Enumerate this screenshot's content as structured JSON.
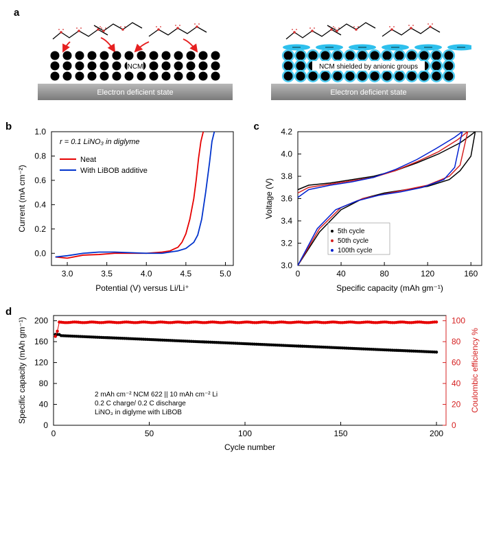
{
  "panel_a": {
    "label": "a",
    "left_label": "NCM",
    "right_label": "NCM shielded by anionic groups",
    "bar_text": "Electron deficient state",
    "grid_cols": 14,
    "grid_rows": 3,
    "dot_radius": 6.5,
    "dot_spacing": 18,
    "left_dot_color": "#000000",
    "right_dot_color": "#000000",
    "shield_fill": "#4ecaef",
    "shield_blob_color": "#2ec0ed",
    "molecule_o_color": "#d52e2e",
    "molecule_chain_color": "#000000",
    "arrow_color": "#e62020",
    "bar_gradient_from": "#b8b8b8",
    "bar_gradient_to": "#7a7a7a"
  },
  "panel_b": {
    "label": "b",
    "type": "line",
    "title_inset": "r = 0.1 LiNO₃ in diglyme",
    "xlabel": "Potential (V) versus Li/Li⁺",
    "ylabel": "Current (mA cm⁻²)",
    "xlim": [
      2.8,
      5.1
    ],
    "ylim": [
      -0.1,
      1.0
    ],
    "xticks": [
      3.0,
      3.5,
      4.0,
      4.5,
      5.0
    ],
    "yticks": [
      0.0,
      0.2,
      0.4,
      0.6,
      0.8,
      1.0
    ],
    "axis_color": "#000000",
    "tick_fontsize": 12,
    "label_fontsize": 12,
    "legend_fontsize": 11,
    "series": {
      "neat": {
        "label": "Neat",
        "color": "#e60000",
        "x": [
          2.85,
          3.0,
          3.2,
          3.4,
          3.6,
          3.8,
          4.0,
          4.2,
          4.3,
          4.4,
          4.45,
          4.5,
          4.55,
          4.6,
          4.63,
          4.66,
          4.69,
          4.72
        ],
        "y": [
          -0.03,
          -0.04,
          -0.015,
          -0.01,
          0.0,
          0.0,
          0.0,
          0.01,
          0.02,
          0.05,
          0.09,
          0.16,
          0.28,
          0.45,
          0.6,
          0.78,
          0.92,
          1.0
        ]
      },
      "additive": {
        "label": "With LiBOB additive",
        "color": "#0033cc",
        "x": [
          2.85,
          3.0,
          3.2,
          3.4,
          3.6,
          3.8,
          4.0,
          4.2,
          4.4,
          4.5,
          4.6,
          4.65,
          4.7,
          4.75,
          4.8,
          4.83,
          4.86
        ],
        "y": [
          -0.03,
          -0.02,
          0.0,
          0.01,
          0.01,
          0.005,
          0.0,
          0.0,
          0.02,
          0.04,
          0.09,
          0.15,
          0.28,
          0.5,
          0.75,
          0.92,
          1.0
        ]
      }
    }
  },
  "panel_c": {
    "label": "c",
    "type": "line",
    "xlabel": "Specific capacity (mAh gm⁻¹)",
    "ylabel": "Voltage (V)",
    "xlim": [
      0,
      170
    ],
    "ylim": [
      3.0,
      4.2
    ],
    "xticks": [
      0,
      40,
      80,
      120,
      160
    ],
    "yticks": [
      3.0,
      3.2,
      3.4,
      3.6,
      3.8,
      4.0,
      4.2
    ],
    "axis_color": "#000000",
    "tick_fontsize": 12,
    "label_fontsize": 12,
    "legend_fontsize": 10,
    "legend_items": [
      {
        "label": "5th cycle",
        "color": "#000000"
      },
      {
        "label": "50th cycle",
        "color": "#d52020"
      },
      {
        "label": "100th cycle",
        "color": "#0020d0"
      }
    ],
    "series": {
      "c5_charge": {
        "color": "#000000",
        "x": [
          0,
          10,
          30,
          50,
          70,
          90,
          110,
          130,
          150,
          160,
          164
        ],
        "y": [
          3.68,
          3.72,
          3.74,
          3.77,
          3.8,
          3.85,
          3.92,
          4.0,
          4.1,
          4.17,
          4.2
        ]
      },
      "c5_dis": {
        "color": "#000000",
        "x": [
          164,
          160,
          150,
          140,
          120,
          100,
          80,
          60,
          40,
          20,
          0
        ],
        "y": [
          4.2,
          3.98,
          3.85,
          3.77,
          3.71,
          3.68,
          3.65,
          3.6,
          3.5,
          3.3,
          3.0
        ]
      },
      "c50_charge": {
        "color": "#d52020",
        "x": [
          0,
          10,
          30,
          50,
          70,
          90,
          110,
          130,
          148,
          157
        ],
        "y": [
          3.65,
          3.7,
          3.73,
          3.76,
          3.79,
          3.85,
          3.93,
          4.02,
          4.13,
          4.2
        ]
      },
      "c50_dis": {
        "color": "#d52020",
        "x": [
          157,
          150,
          140,
          120,
          100,
          80,
          60,
          40,
          20,
          0
        ],
        "y": [
          4.2,
          3.9,
          3.8,
          3.72,
          3.68,
          3.64,
          3.6,
          3.52,
          3.33,
          3.0
        ]
      },
      "c100_charge": {
        "color": "#0020d0",
        "x": [
          0,
          10,
          30,
          50,
          70,
          90,
          110,
          128,
          145,
          152
        ],
        "y": [
          3.61,
          3.68,
          3.72,
          3.75,
          3.79,
          3.86,
          3.95,
          4.05,
          4.15,
          4.2
        ]
      },
      "c100_dis": {
        "color": "#0020d0",
        "x": [
          152,
          145,
          135,
          115,
          95,
          75,
          55,
          35,
          18,
          0
        ],
        "y": [
          4.2,
          3.88,
          3.77,
          3.7,
          3.66,
          3.63,
          3.58,
          3.5,
          3.33,
          3.0
        ]
      }
    }
  },
  "panel_d": {
    "label": "d",
    "type": "scatter",
    "xlabel": "Cycle number",
    "ylabel": "Specific capacity (mAh gm⁻¹)",
    "ylabel2": "Coulombic efficiency %",
    "xlim": [
      0,
      205
    ],
    "ylim": [
      0,
      210
    ],
    "ylim2": [
      0,
      105
    ],
    "xticks": [
      0,
      50,
      100,
      150,
      200
    ],
    "yticks": [
      0,
      40,
      80,
      120,
      160,
      200
    ],
    "yticks2": [
      0,
      20,
      40,
      60,
      80,
      100
    ],
    "axis_color": "#000000",
    "axis2_color": "#d52020",
    "tick_fontsize": 12,
    "label_fontsize": 12,
    "marker_size": 2.2,
    "annotations": [
      "2 mAh cm⁻² NCM 622 || 10 mAh cm⁻² Li",
      "0.2 C charge/ 0.2 C discharge",
      "LiNO₃ in diglyme with LiBOB"
    ],
    "capacity_color": "#000000",
    "ce_color": "#e60000",
    "capacity_start": 172,
    "capacity_end": 140,
    "ce_first": 85,
    "ce_second": 90,
    "ce_steady": 98.5,
    "n_cycles": 200
  }
}
